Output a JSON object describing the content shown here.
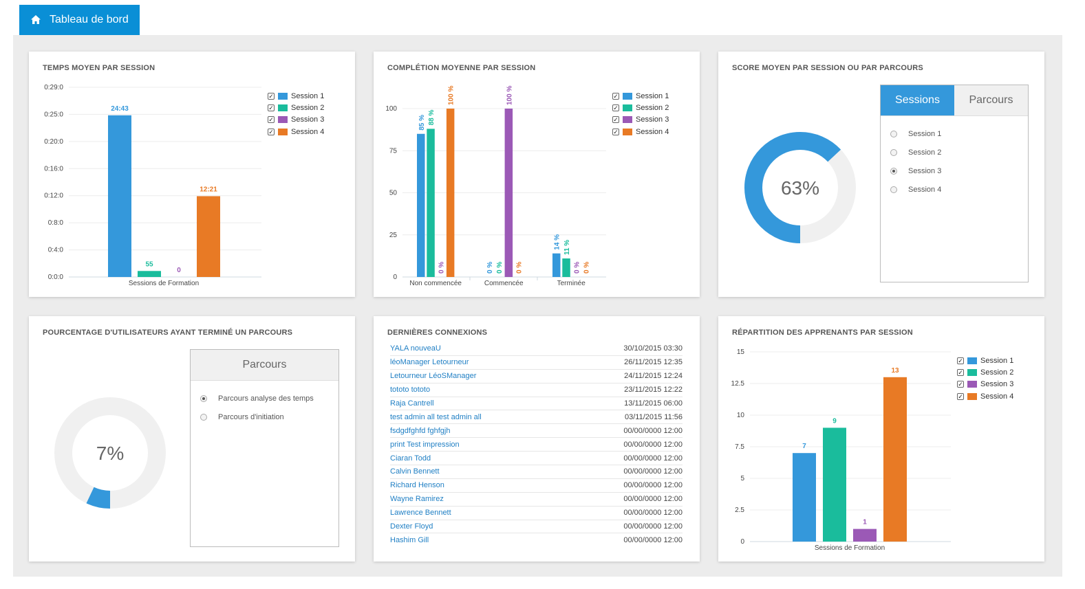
{
  "header": {
    "tab_label": "Tableau de bord"
  },
  "colors": {
    "s1": "#3498db",
    "s2": "#1abc9c",
    "s3": "#9b59b6",
    "s4": "#e87a25",
    "accent": "#0a8fd6"
  },
  "legend": [
    "Session 1",
    "Session 2",
    "Session 3",
    "Session 4"
  ],
  "cards": {
    "temps": {
      "title": "TEMPS MOYEN PAR SESSION"
    },
    "completion": {
      "title": "COMPLÉTION MOYENNE PAR SESSION"
    },
    "score": {
      "title": "SCORE MOYEN PAR SESSION OU PAR PARCOURS",
      "value": "63%",
      "percent": 63,
      "tabs": [
        "Sessions",
        "Parcours"
      ],
      "options": [
        "Session 1",
        "Session 2",
        "Session 3",
        "Session 4"
      ],
      "selected": 2
    },
    "pourcentage": {
      "title": "POURCENTAGE D'UTILISATEURS AYANT TERMINÉ UN PARCOURS",
      "value": "7%",
      "percent": 7,
      "panel_title": "Parcours",
      "options": [
        "Parcours analyse des temps",
        "Parcours d'initiation"
      ],
      "selected": 0
    },
    "connexions": {
      "title": "DERNIÈRES CONNEXIONS",
      "rows": [
        {
          "name": "YALA nouveaU",
          "date": "30/10/2015 03:30"
        },
        {
          "name": "léoManager Letourneur",
          "date": "26/11/2015 12:35"
        },
        {
          "name": "Letourneur LéoSManager",
          "date": "24/11/2015 12:24"
        },
        {
          "name": "tototo tototo",
          "date": "23/11/2015 12:22"
        },
        {
          "name": "Raja Cantrell",
          "date": "13/11/2015 06:00"
        },
        {
          "name": "test admin all test admin all",
          "date": "03/11/2015 11:56"
        },
        {
          "name": "fsdgdfghfd fghfgjh",
          "date": "00/00/0000 12:00"
        },
        {
          "name": "print Test impression",
          "date": "00/00/0000 12:00"
        },
        {
          "name": "Ciaran Todd",
          "date": "00/00/0000 12:00"
        },
        {
          "name": "Calvin Bennett",
          "date": "00/00/0000 12:00"
        },
        {
          "name": "Richard Henson",
          "date": "00/00/0000 12:00"
        },
        {
          "name": "Wayne Ramirez",
          "date": "00/00/0000 12:00"
        },
        {
          "name": "Lawrence Bennett",
          "date": "00/00/0000 12:00"
        },
        {
          "name": "Dexter Floyd",
          "date": "00/00/0000 12:00"
        },
        {
          "name": "Hashim Gill",
          "date": "00/00/0000 12:00"
        }
      ]
    },
    "repartition": {
      "title": "RÉPARTITION DES APPRENANTS PAR SESSION"
    }
  },
  "chart_data": [
    {
      "type": "bar",
      "title": "TEMPS MOYEN PAR SESSION",
      "categories": [
        "Sessions de Formation"
      ],
      "series": [
        {
          "name": "Session 1",
          "values": [
            1483
          ],
          "label": "24:43"
        },
        {
          "name": "Session 2",
          "values": [
            55
          ],
          "label": "55"
        },
        {
          "name": "Session 3",
          "values": [
            0
          ],
          "label": "0"
        },
        {
          "name": "Session 4",
          "values": [
            741
          ],
          "label": "12:21"
        }
      ],
      "yticks": [
        "0:0:0",
        "0:4:0",
        "0:8:0",
        "0:12:0",
        "0:16:0",
        "0:20:0",
        "0:25:0",
        "0:29:0"
      ],
      "ylim": [
        0,
        1740
      ],
      "xlabel": "Sessions de Formation"
    },
    {
      "type": "bar",
      "title": "COMPLÉTION MOYENNE PAR SESSION",
      "categories": [
        "Non commencée",
        "Commencée",
        "Terminée"
      ],
      "series": [
        {
          "name": "Session 1",
          "values": [
            85,
            0,
            14
          ],
          "labels": [
            "85 %",
            "0 %",
            "14 %"
          ]
        },
        {
          "name": "Session 2",
          "values": [
            88,
            0,
            11
          ],
          "labels": [
            "88 %",
            "0 %",
            "11 %"
          ]
        },
        {
          "name": "Session 3",
          "values": [
            0,
            100,
            0
          ],
          "labels": [
            "0 %",
            "100 %",
            "0 %"
          ]
        },
        {
          "name": "Session 4",
          "values": [
            100,
            0,
            0
          ],
          "labels": [
            "100 %",
            "0 %",
            "0 %"
          ]
        }
      ],
      "yticks": [
        "0",
        "25",
        "50",
        "75",
        "100"
      ],
      "ylim": [
        0,
        100
      ]
    },
    {
      "type": "bar",
      "title": "RÉPARTITION DES APPRENANTS PAR SESSION",
      "categories": [
        "Sessions de Formation"
      ],
      "series": [
        {
          "name": "Session 1",
          "values": [
            7
          ],
          "label": "7"
        },
        {
          "name": "Session 2",
          "values": [
            9
          ],
          "label": "9"
        },
        {
          "name": "Session 3",
          "values": [
            1
          ],
          "label": "1"
        },
        {
          "name": "Session 4",
          "values": [
            13
          ],
          "label": "13"
        }
      ],
      "yticks": [
        "0",
        "2.5",
        "5",
        "7.5",
        "10",
        "12.5",
        "15"
      ],
      "ylim": [
        0,
        15
      ],
      "xlabel": "Sessions de Formation"
    }
  ]
}
